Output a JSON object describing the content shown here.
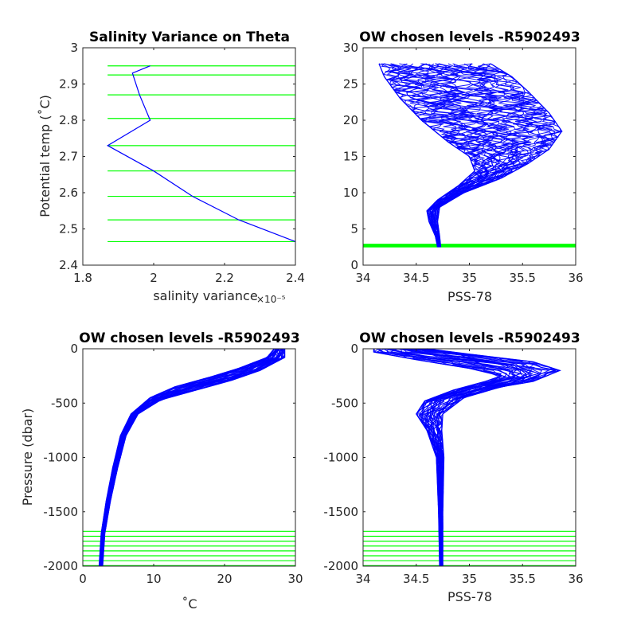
{
  "chart_data": [
    {
      "type": "line",
      "title": "Salinity Variance on Theta",
      "xlabel": "salinity variance",
      "x_exponent": "×10⁻⁵",
      "ylabel": "Potential temp (˚C)",
      "xlim": [
        1.8,
        2.4
      ],
      "ylim": [
        2.4,
        3.0
      ],
      "xticks": [
        "1.8",
        "2",
        "2.2",
        "2.4"
      ],
      "yticks": [
        "2.4",
        "2.5",
        "2.6",
        "2.7",
        "2.8",
        "2.9",
        "3"
      ],
      "series": [
        {
          "color": "#0000ff",
          "x": [
            1.99,
            1.94,
            1.96,
            1.99,
            1.87,
            2.0,
            2.11,
            2.24,
            2.4
          ],
          "y": [
            2.95,
            2.93,
            2.87,
            2.8,
            2.73,
            2.66,
            2.59,
            2.525,
            2.465
          ]
        }
      ],
      "level_lines": {
        "color": "#00ff00",
        "x_from": 1.87,
        "values": [
          2.95,
          2.925,
          2.87,
          2.805,
          2.73,
          2.66,
          2.59,
          2.525,
          2.465
        ]
      }
    },
    {
      "type": "line",
      "title": "OW chosen levels -R5902493",
      "xlabel": "PSS-78",
      "ylabel": "",
      "xlim": [
        34,
        36
      ],
      "ylim": [
        0,
        30
      ],
      "xticks": [
        "34",
        "34.5",
        "35",
        "35.5",
        "36"
      ],
      "yticks": [
        "0",
        "5",
        "10",
        "15",
        "20",
        "25",
        "30"
      ],
      "series": [
        {
          "color": "#0000ff",
          "envelope_left": [
            [
              34.7,
              2.5
            ],
            [
              34.68,
              4
            ],
            [
              34.62,
              6
            ],
            [
              34.6,
              7.5
            ],
            [
              34.7,
              9
            ],
            [
              34.9,
              11
            ],
            [
              35.05,
              13
            ],
            [
              35.0,
              15
            ],
            [
              34.8,
              17
            ],
            [
              34.55,
              20
            ],
            [
              34.35,
              23
            ],
            [
              34.2,
              26
            ],
            [
              34.15,
              27.8
            ]
          ],
          "envelope_right": [
            [
              34.73,
              2.5
            ],
            [
              34.72,
              4
            ],
            [
              34.7,
              6
            ],
            [
              34.72,
              8
            ],
            [
              34.95,
              10
            ],
            [
              35.3,
              12
            ],
            [
              35.55,
              14
            ],
            [
              35.75,
              16
            ],
            [
              35.87,
              18.5
            ],
            [
              35.75,
              21
            ],
            [
              35.55,
              24
            ],
            [
              35.4,
              26
            ],
            [
              35.2,
              27.8
            ]
          ]
        }
      ],
      "level_band": {
        "color": "#00ff00",
        "y_from": 2.45,
        "y_to": 2.95
      }
    },
    {
      "type": "line",
      "title": "OW chosen levels -R5902493",
      "xlabel": "˚C",
      "ylabel": "Pressure (dbar)",
      "xlim": [
        0,
        30
      ],
      "ylim": [
        -2000,
        0
      ],
      "xticks": [
        "0",
        "10",
        "20",
        "30"
      ],
      "yticks": [
        "-2000",
        "-1500",
        "-1000",
        "-500",
        "0"
      ],
      "series": [
        {
          "color": "#0000ff",
          "envelope_left": [
            [
              2.3,
              -2000
            ],
            [
              2.6,
              -1700
            ],
            [
              3.3,
              -1400
            ],
            [
              4.2,
              -1100
            ],
            [
              5.3,
              -800
            ],
            [
              6.8,
              -600
            ],
            [
              9.5,
              -450
            ],
            [
              13,
              -350
            ],
            [
              18,
              -260
            ],
            [
              22,
              -180
            ],
            [
              26,
              -80
            ],
            [
              27,
              0
            ]
          ],
          "envelope_right": [
            [
              2.8,
              -2000
            ],
            [
              3.1,
              -1700
            ],
            [
              3.9,
              -1400
            ],
            [
              4.9,
              -1100
            ],
            [
              6.1,
              -800
            ],
            [
              7.8,
              -600
            ],
            [
              11,
              -470
            ],
            [
              16,
              -380
            ],
            [
              21,
              -290
            ],
            [
              25,
              -200
            ],
            [
              28.5,
              -80
            ],
            [
              28.5,
              0
            ]
          ]
        }
      ],
      "level_lines": {
        "color": "#00ff00",
        "values": [
          -1680,
          -1725,
          -1770,
          -1815,
          -1860,
          -1905,
          -1950,
          -1995
        ]
      }
    },
    {
      "type": "line",
      "title": "OW chosen levels -R5902493",
      "xlabel": "PSS-78",
      "ylabel": "",
      "xlim": [
        34,
        36
      ],
      "ylim": [
        -2000,
        0
      ],
      "xticks": [
        "34",
        "34.5",
        "35",
        "35.5",
        "36"
      ],
      "yticks": [
        "-2000",
        "-1500",
        "-1000",
        "-500",
        "0"
      ],
      "series": [
        {
          "color": "#0000ff",
          "envelope_left": [
            [
              34.72,
              -2000
            ],
            [
              34.71,
              -1500
            ],
            [
              34.69,
              -1000
            ],
            [
              34.6,
              -750
            ],
            [
              34.5,
              -600
            ],
            [
              34.58,
              -480
            ],
            [
              34.85,
              -380
            ],
            [
              35.15,
              -300
            ],
            [
              35.3,
              -250
            ],
            [
              35.0,
              -180
            ],
            [
              34.5,
              -100
            ],
            [
              34.1,
              -30
            ],
            [
              34.1,
              0
            ]
          ],
          "envelope_right": [
            [
              34.75,
              -2000
            ],
            [
              34.75,
              -1500
            ],
            [
              34.76,
              -1000
            ],
            [
              34.74,
              -750
            ],
            [
              34.75,
              -600
            ],
            [
              34.95,
              -450
            ],
            [
              35.3,
              -350
            ],
            [
              35.6,
              -300
            ],
            [
              35.85,
              -200
            ],
            [
              35.6,
              -120
            ],
            [
              35.0,
              -50
            ],
            [
              34.6,
              0
            ]
          ]
        }
      ],
      "level_lines": {
        "color": "#00ff00",
        "values": [
          -1680,
          -1725,
          -1770,
          -1815,
          -1860,
          -1905,
          -1950,
          -1995
        ]
      }
    }
  ]
}
